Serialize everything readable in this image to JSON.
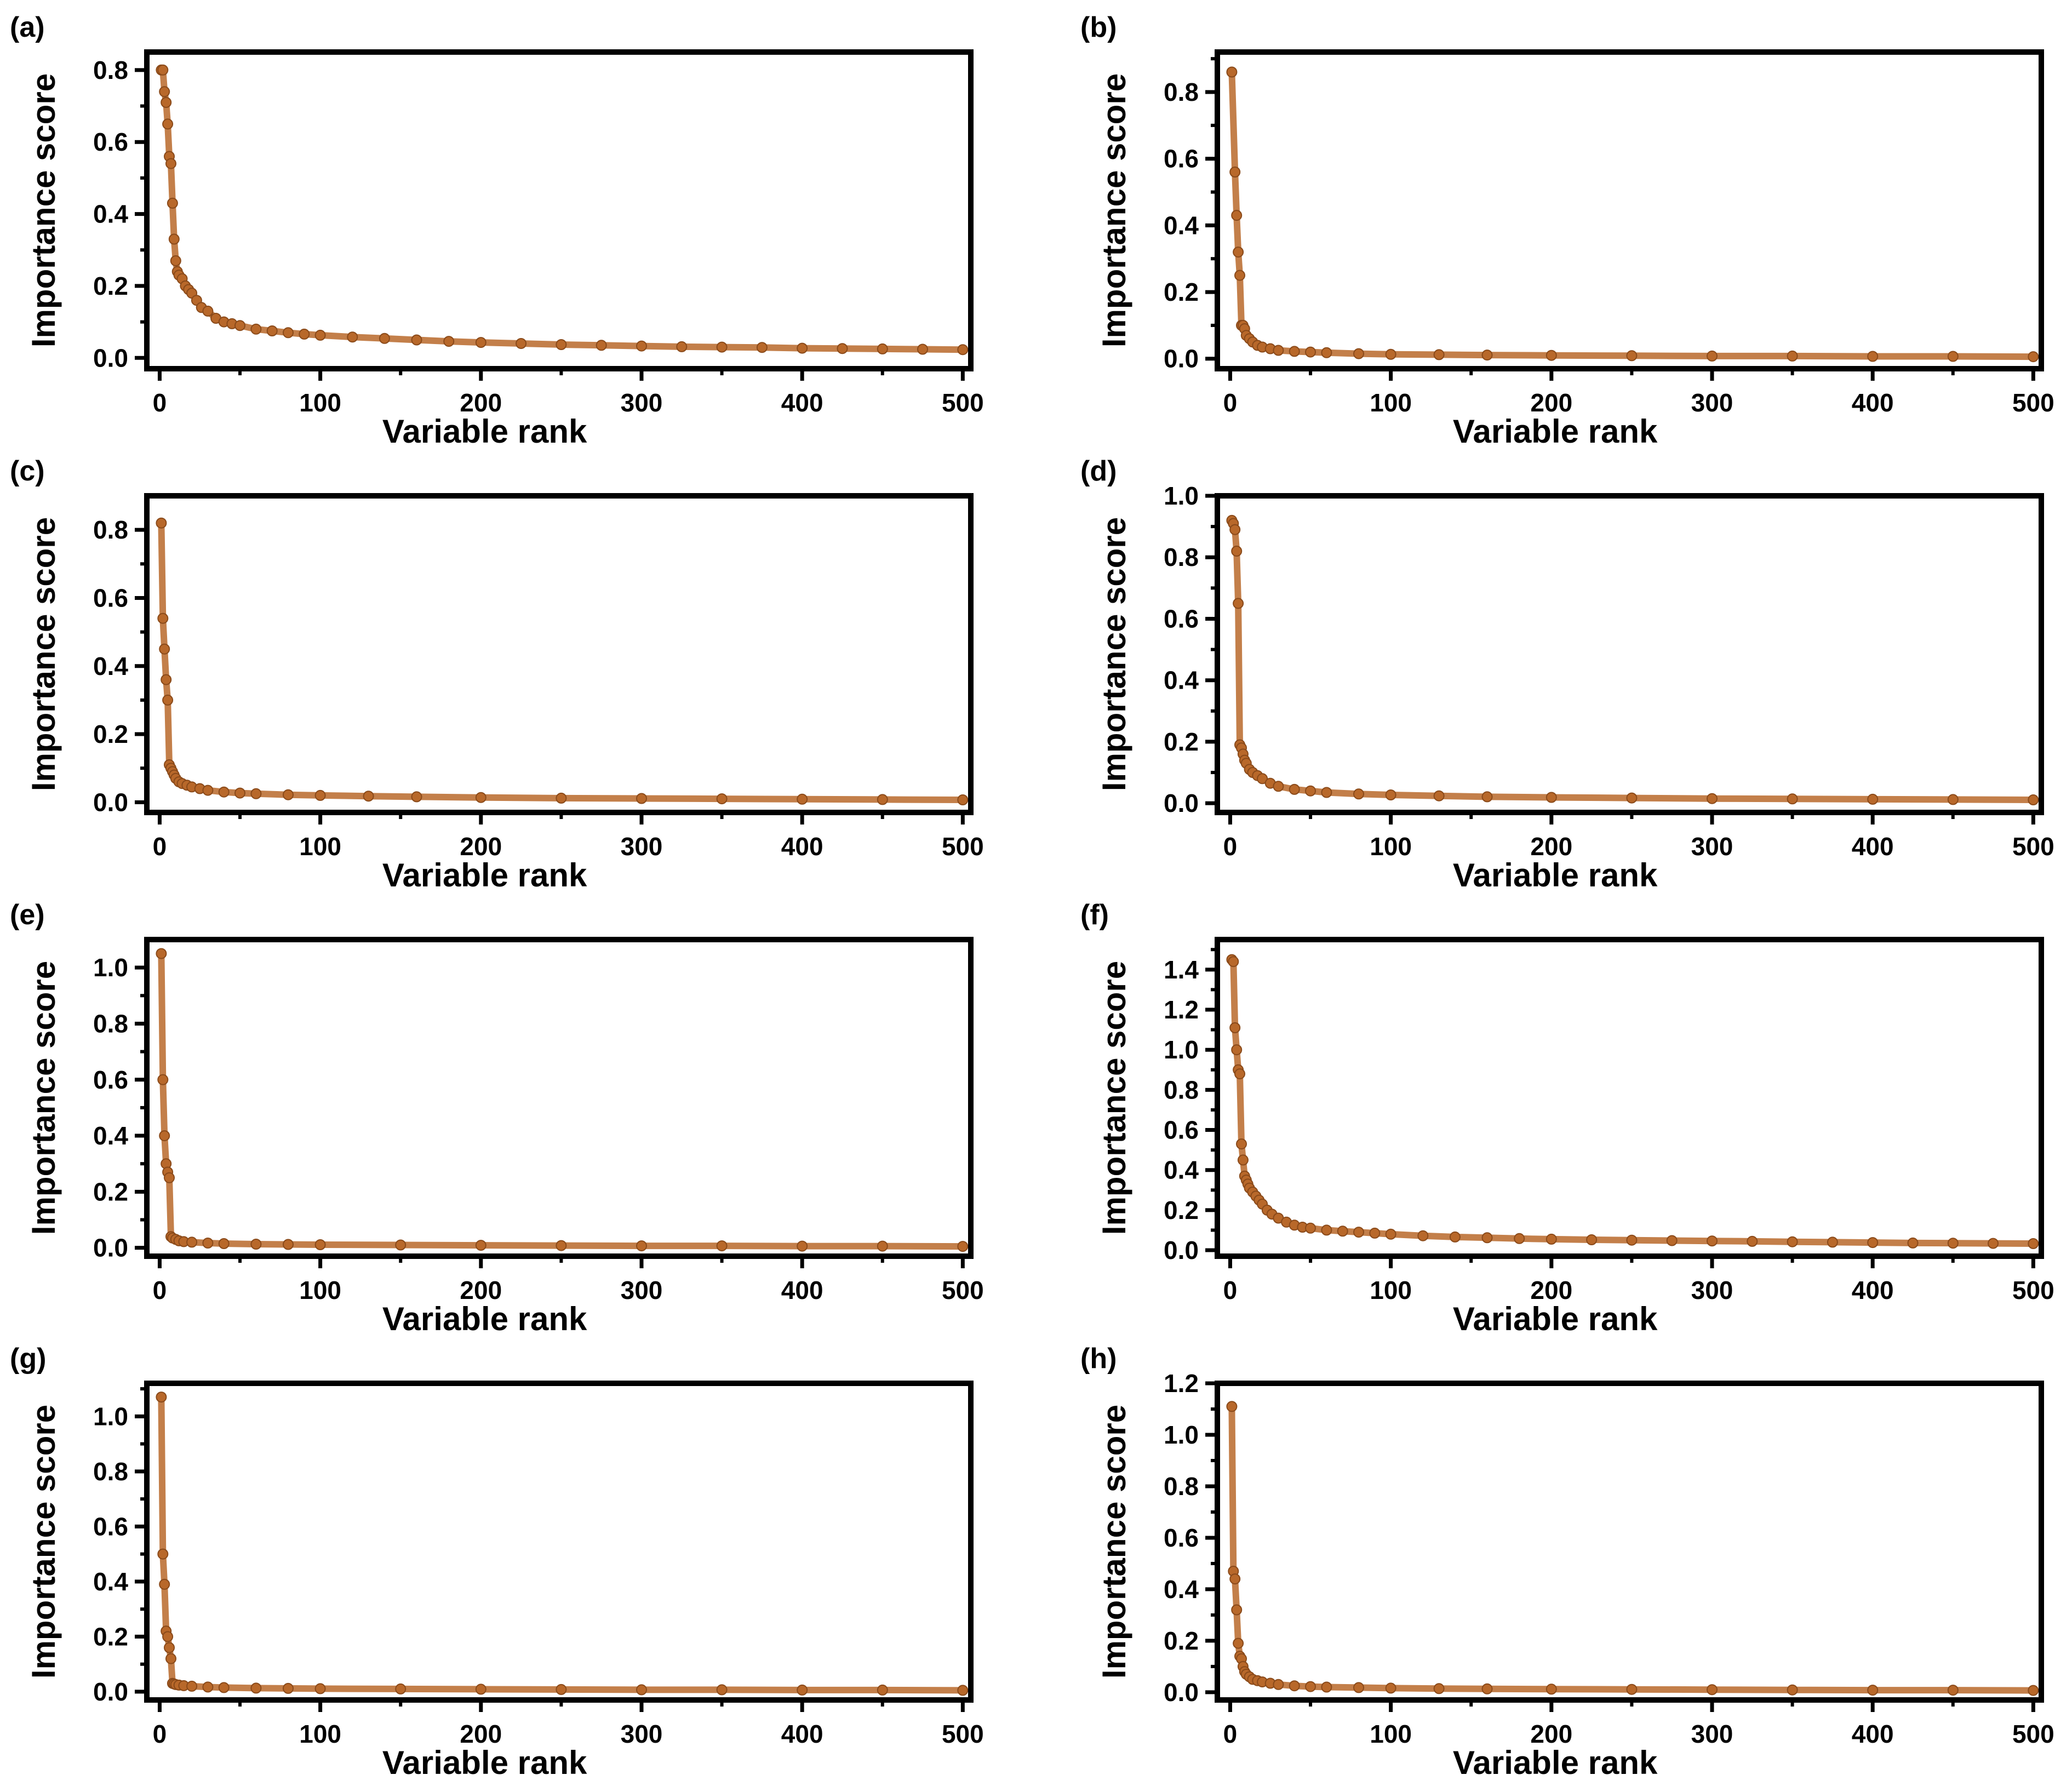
{
  "figure": {
    "marker_color": "#B8682A",
    "marker_edge_color": "#8A4A1A"
  },
  "chart_data": [
    {
      "type": "scatter",
      "panel": "(a)",
      "xlabel": "Variable rank",
      "ylabel": "Importance score",
      "xlim": [
        -8,
        505
      ],
      "ylim": [
        -0.03,
        0.85
      ],
      "xticks": [
        0,
        100,
        200,
        300,
        400,
        500
      ],
      "yticks": [
        0.0,
        0.2,
        0.4,
        0.6,
        0.8
      ],
      "ytick_labels": [
        "0.0",
        "0.2",
        "0.4",
        "0.6",
        "0.8"
      ],
      "grid": false,
      "series": [
        {
          "x": [
            1,
            2,
            3,
            4,
            5,
            6,
            7,
            8,
            9,
            10,
            11,
            12,
            14,
            16,
            18,
            20,
            23,
            26,
            30,
            35,
            40,
            45,
            50,
            60,
            70,
            80,
            90,
            100,
            120,
            140,
            160,
            180,
            200,
            225,
            250,
            275,
            300,
            325,
            350,
            375,
            400,
            425,
            450,
            475,
            500
          ],
          "y": [
            0.8,
            0.8,
            0.74,
            0.71,
            0.65,
            0.56,
            0.54,
            0.43,
            0.33,
            0.27,
            0.24,
            0.23,
            0.22,
            0.2,
            0.19,
            0.18,
            0.16,
            0.14,
            0.13,
            0.11,
            0.1,
            0.095,
            0.09,
            0.08,
            0.075,
            0.07,
            0.066,
            0.063,
            0.058,
            0.054,
            0.05,
            0.046,
            0.043,
            0.04,
            0.037,
            0.035,
            0.033,
            0.031,
            0.03,
            0.029,
            0.027,
            0.026,
            0.025,
            0.024,
            0.023
          ]
        }
      ]
    },
    {
      "type": "scatter",
      "panel": "(b)",
      "xlabel": "Variable rank",
      "ylabel": "Importance score",
      "xlim": [
        -8,
        505
      ],
      "ylim": [
        -0.03,
        0.92
      ],
      "xticks": [
        0,
        100,
        200,
        300,
        400,
        500
      ],
      "yticks": [
        0.0,
        0.2,
        0.4,
        0.6,
        0.8
      ],
      "ytick_labels": [
        "0.0",
        "0.2",
        "0.4",
        "0.6",
        "0.8"
      ],
      "grid": false,
      "series": [
        {
          "x": [
            1,
            3,
            4,
            5,
            6,
            7,
            8,
            9,
            10,
            12,
            14,
            17,
            20,
            25,
            30,
            40,
            50,
            60,
            80,
            100,
            130,
            160,
            200,
            250,
            300,
            350,
            400,
            450,
            500
          ],
          "y": [
            0.86,
            0.56,
            0.43,
            0.32,
            0.25,
            0.1,
            0.1,
            0.09,
            0.07,
            0.06,
            0.05,
            0.04,
            0.035,
            0.03,
            0.025,
            0.022,
            0.02,
            0.018,
            0.015,
            0.013,
            0.012,
            0.011,
            0.01,
            0.009,
            0.008,
            0.008,
            0.007,
            0.007,
            0.006
          ]
        }
      ]
    },
    {
      "type": "scatter",
      "panel": "(c)",
      "xlabel": "Variable rank",
      "ylabel": "Importance score",
      "xlim": [
        -8,
        505
      ],
      "ylim": [
        -0.03,
        0.9
      ],
      "xticks": [
        0,
        100,
        200,
        300,
        400,
        500
      ],
      "yticks": [
        0.0,
        0.2,
        0.4,
        0.6,
        0.8
      ],
      "ytick_labels": [
        "0.0",
        "0.2",
        "0.4",
        "0.6",
        "0.8"
      ],
      "grid": false,
      "series": [
        {
          "x": [
            1,
            2,
            3,
            4,
            5,
            6,
            7,
            8,
            9,
            10,
            12,
            14,
            17,
            20,
            25,
            30,
            40,
            50,
            60,
            80,
            100,
            130,
            160,
            200,
            250,
            300,
            350,
            400,
            450,
            500
          ],
          "y": [
            0.82,
            0.54,
            0.45,
            0.36,
            0.3,
            0.11,
            0.1,
            0.09,
            0.08,
            0.07,
            0.06,
            0.055,
            0.05,
            0.045,
            0.04,
            0.035,
            0.03,
            0.027,
            0.025,
            0.022,
            0.02,
            0.018,
            0.016,
            0.014,
            0.012,
            0.011,
            0.01,
            0.009,
            0.008,
            0.007
          ]
        }
      ]
    },
    {
      "type": "scatter",
      "panel": "(d)",
      "xlabel": "Variable rank",
      "ylabel": "Importance score",
      "xlim": [
        -8,
        505
      ],
      "ylim": [
        -0.03,
        1.0
      ],
      "xticks": [
        0,
        100,
        200,
        300,
        400,
        500
      ],
      "yticks": [
        0.0,
        0.2,
        0.4,
        0.6,
        0.8,
        1.0
      ],
      "ytick_labels": [
        "0.0",
        "0.2",
        "0.4",
        "0.6",
        "0.8",
        "1.0"
      ],
      "grid": false,
      "series": [
        {
          "x": [
            1,
            2,
            3,
            4,
            5,
            6,
            7,
            8,
            9,
            10,
            12,
            14,
            17,
            20,
            25,
            30,
            40,
            50,
            60,
            80,
            100,
            130,
            160,
            200,
            250,
            300,
            350,
            400,
            450,
            500
          ],
          "y": [
            0.92,
            0.91,
            0.89,
            0.82,
            0.65,
            0.19,
            0.18,
            0.16,
            0.14,
            0.13,
            0.11,
            0.1,
            0.09,
            0.08,
            0.065,
            0.055,
            0.045,
            0.04,
            0.035,
            0.03,
            0.027,
            0.024,
            0.021,
            0.019,
            0.017,
            0.015,
            0.014,
            0.013,
            0.012,
            0.011
          ]
        }
      ]
    },
    {
      "type": "scatter",
      "panel": "(e)",
      "xlabel": "Variable rank",
      "ylabel": "Importance score",
      "xlim": [
        -8,
        505
      ],
      "ylim": [
        -0.03,
        1.1
      ],
      "xticks": [
        0,
        100,
        200,
        300,
        400,
        500
      ],
      "yticks": [
        0.0,
        0.2,
        0.4,
        0.6,
        0.8,
        1.0
      ],
      "ytick_labels": [
        "0.0",
        "0.2",
        "0.4",
        "0.6",
        "0.8",
        "1.0"
      ],
      "grid": false,
      "series": [
        {
          "x": [
            1,
            2,
            3,
            4,
            5,
            6,
            7,
            8,
            10,
            12,
            15,
            20,
            30,
            40,
            60,
            80,
            100,
            150,
            200,
            250,
            300,
            350,
            400,
            450,
            500
          ],
          "y": [
            1.05,
            0.6,
            0.4,
            0.3,
            0.27,
            0.25,
            0.04,
            0.035,
            0.03,
            0.025,
            0.022,
            0.02,
            0.017,
            0.015,
            0.013,
            0.012,
            0.011,
            0.01,
            0.009,
            0.008,
            0.007,
            0.007,
            0.006,
            0.006,
            0.005
          ]
        }
      ]
    },
    {
      "type": "scatter",
      "panel": "(f)",
      "xlabel": "Variable rank",
      "ylabel": "Importance score",
      "xlim": [
        -8,
        505
      ],
      "ylim": [
        -0.03,
        1.55
      ],
      "xticks": [
        0,
        100,
        200,
        300,
        400,
        500
      ],
      "yticks": [
        0.0,
        0.2,
        0.4,
        0.6,
        0.8,
        1.0,
        1.2,
        1.4
      ],
      "ytick_labels": [
        "0.0",
        "0.2",
        "0.4",
        "0.6",
        "0.8",
        "1.0",
        "1.2",
        "1.4"
      ],
      "grid": false,
      "series": [
        {
          "x": [
            1,
            2,
            3,
            4,
            5,
            6,
            7,
            8,
            9,
            10,
            11,
            12,
            14,
            16,
            18,
            20,
            23,
            26,
            30,
            35,
            40,
            45,
            50,
            60,
            70,
            80,
            90,
            100,
            120,
            140,
            160,
            180,
            200,
            225,
            250,
            275,
            300,
            325,
            350,
            375,
            400,
            425,
            450,
            475,
            500
          ],
          "y": [
            1.45,
            1.44,
            1.11,
            1.0,
            0.9,
            0.88,
            0.53,
            0.45,
            0.37,
            0.35,
            0.33,
            0.31,
            0.29,
            0.27,
            0.25,
            0.23,
            0.2,
            0.18,
            0.16,
            0.14,
            0.125,
            0.115,
            0.11,
            0.1,
            0.095,
            0.09,
            0.085,
            0.08,
            0.072,
            0.066,
            0.062,
            0.058,
            0.055,
            0.052,
            0.05,
            0.048,
            0.046,
            0.044,
            0.042,
            0.04,
            0.038,
            0.036,
            0.035,
            0.034,
            0.033
          ]
        }
      ]
    },
    {
      "type": "scatter",
      "panel": "(g)",
      "xlabel": "Variable rank",
      "ylabel": "Importance score",
      "xlim": [
        -8,
        505
      ],
      "ylim": [
        -0.03,
        1.12
      ],
      "xticks": [
        0,
        100,
        200,
        300,
        400,
        500
      ],
      "yticks": [
        0.0,
        0.2,
        0.4,
        0.6,
        0.8,
        1.0
      ],
      "ytick_labels": [
        "0.0",
        "0.2",
        "0.4",
        "0.6",
        "0.8",
        "1.0"
      ],
      "grid": false,
      "series": [
        {
          "x": [
            1,
            2,
            3,
            4,
            5,
            6,
            7,
            8,
            9,
            10,
            12,
            15,
            20,
            30,
            40,
            60,
            80,
            100,
            150,
            200,
            250,
            300,
            350,
            400,
            450,
            500
          ],
          "y": [
            1.07,
            0.5,
            0.39,
            0.22,
            0.2,
            0.16,
            0.12,
            0.03,
            0.028,
            0.026,
            0.024,
            0.022,
            0.02,
            0.017,
            0.015,
            0.013,
            0.012,
            0.011,
            0.01,
            0.009,
            0.008,
            0.007,
            0.007,
            0.006,
            0.006,
            0.005
          ]
        }
      ]
    },
    {
      "type": "scatter",
      "panel": "(h)",
      "xlabel": "Variable rank",
      "ylabel": "Importance score",
      "xlim": [
        -8,
        505
      ],
      "ylim": [
        -0.03,
        1.2
      ],
      "xticks": [
        0,
        100,
        200,
        300,
        400,
        500
      ],
      "yticks": [
        0.0,
        0.2,
        0.4,
        0.6,
        0.8,
        1.0,
        1.2
      ],
      "ytick_labels": [
        "0.0",
        "0.2",
        "0.4",
        "0.6",
        "0.8",
        "1.0",
        "1.2"
      ],
      "grid": false,
      "series": [
        {
          "x": [
            1,
            2,
            3,
            4,
            5,
            6,
            7,
            8,
            9,
            10,
            12,
            14,
            17,
            20,
            25,
            30,
            40,
            50,
            60,
            80,
            100,
            130,
            160,
            200,
            250,
            300,
            350,
            400,
            450,
            500
          ],
          "y": [
            1.11,
            0.47,
            0.44,
            0.32,
            0.19,
            0.14,
            0.13,
            0.1,
            0.08,
            0.07,
            0.06,
            0.05,
            0.045,
            0.04,
            0.035,
            0.03,
            0.025,
            0.022,
            0.02,
            0.018,
            0.016,
            0.014,
            0.013,
            0.012,
            0.011,
            0.01,
            0.009,
            0.008,
            0.008,
            0.007
          ]
        }
      ]
    }
  ]
}
